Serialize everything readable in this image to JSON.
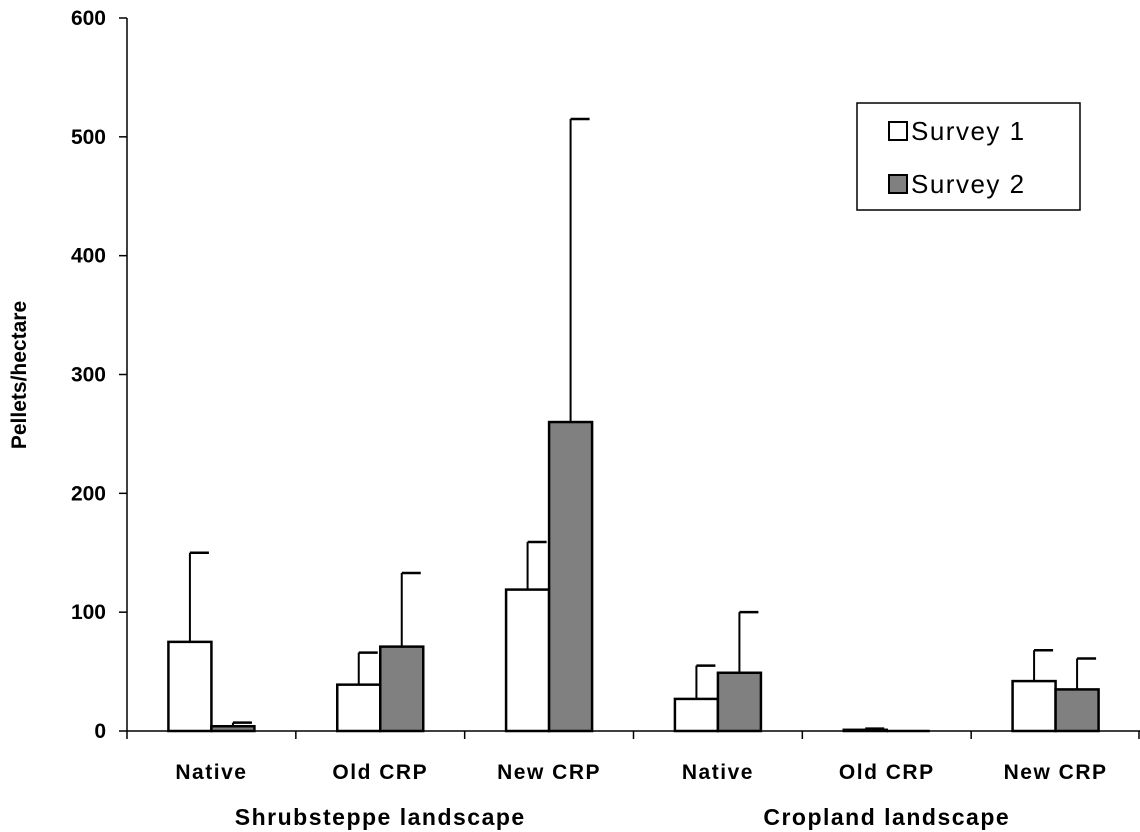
{
  "chart_data": {
    "type": "bar",
    "ylabel": "Pellets/hectare",
    "ylim": [
      0,
      600
    ],
    "yticks": [
      0,
      100,
      200,
      300,
      400,
      500,
      600
    ],
    "categories": [
      "Native",
      "Old CRP",
      "New CRP",
      "Native",
      "Old CRP",
      "New CRP"
    ],
    "groups": [
      {
        "label": "Shrubsteppe landscape",
        "categories": [
          0,
          1,
          2
        ]
      },
      {
        "label": "Cropland landscape",
        "categories": [
          3,
          4,
          5
        ]
      }
    ],
    "series": [
      {
        "name": "Survey 1",
        "color": "#ffffff",
        "values": [
          75,
          39,
          119,
          27,
          1,
          42
        ],
        "error": [
          75,
          27,
          40,
          28,
          1,
          26
        ]
      },
      {
        "name": "Survey 2",
        "color": "#808080",
        "values": [
          4,
          71,
          260,
          49,
          0,
          35
        ],
        "error": [
          3,
          62,
          255,
          51,
          0,
          26
        ]
      }
    ],
    "legend": {
      "position": "top-right",
      "entries": [
        "Survey 1",
        "Survey 2"
      ]
    },
    "grid": false
  }
}
